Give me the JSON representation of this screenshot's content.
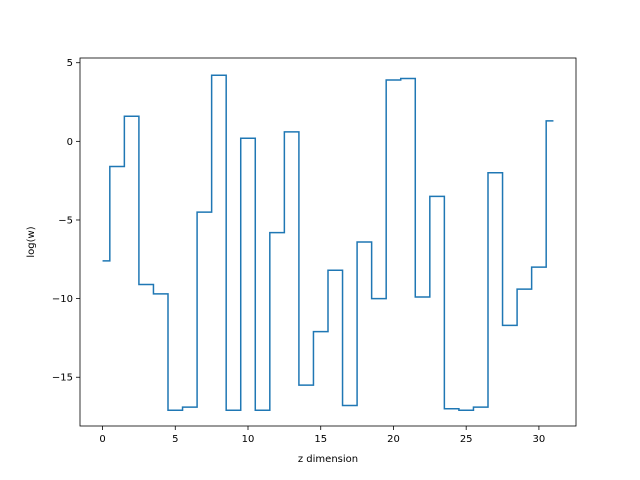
{
  "chart_data": {
    "type": "line",
    "drawstyle": "steps-mid",
    "title": "",
    "xlabel": "z dimension",
    "ylabel": "log(w)",
    "xlim": [
      -1.55,
      32.55
    ],
    "ylim": [
      -18.1,
      5.3
    ],
    "x_ticks": [
      0,
      5,
      10,
      15,
      20,
      25,
      30
    ],
    "y_ticks": [
      5,
      0,
      -5,
      -10,
      -15
    ],
    "x_tick_labels": [
      "0",
      "5",
      "10",
      "15",
      "20",
      "25",
      "30"
    ],
    "y_tick_labels": [
      "5",
      "0",
      "−5",
      "−10",
      "−15"
    ],
    "grid": false,
    "series_color": "#1f77b4",
    "series": [
      {
        "x": [
          0,
          1,
          2,
          3,
          4,
          5,
          6,
          7,
          8,
          9,
          10,
          11,
          12,
          13,
          14,
          15,
          16,
          17,
          18,
          19,
          20,
          21,
          22,
          23,
          24,
          25,
          26,
          27,
          28,
          29,
          30,
          31
        ],
        "values": [
          -7.6,
          -1.6,
          1.6,
          -9.1,
          -9.7,
          -17.1,
          -16.9,
          -4.5,
          4.2,
          -17.1,
          0.2,
          -17.1,
          -5.8,
          0.6,
          -15.5,
          -12.1,
          -8.2,
          -16.8,
          -6.4,
          -10.0,
          3.9,
          4.0,
          -9.9,
          -3.5,
          -17.0,
          -17.1,
          -16.9,
          -2.0,
          -11.7,
          -9.4,
          -8.0,
          1.3
        ]
      }
    ]
  }
}
